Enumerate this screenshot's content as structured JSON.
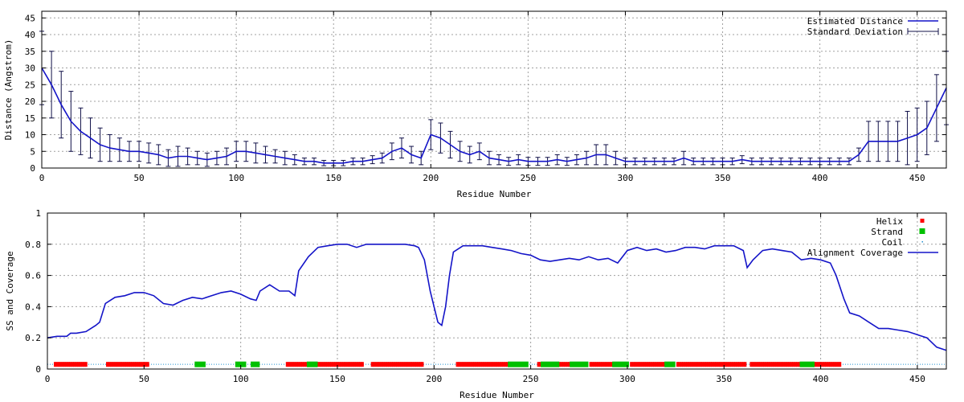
{
  "chart_data": [
    {
      "type": "line",
      "xlabel": "Residue Number",
      "ylabel": "Distance (Angstrom)",
      "xlim": [
        0,
        465
      ],
      "ylim": [
        0,
        47
      ],
      "xticks": [
        0,
        50,
        100,
        150,
        200,
        250,
        300,
        350,
        400,
        450
      ],
      "yticks": [
        0,
        5,
        10,
        15,
        20,
        25,
        30,
        35,
        40,
        45
      ],
      "grid": true,
      "legend_position": "top-right",
      "legend": [
        "Estimated Distance",
        "Standard Deviation"
      ],
      "colors": {
        "line": "#1414c8",
        "errorbar": "#101048"
      },
      "series": [
        {
          "name": "Estimated Distance",
          "x": [
            0,
            5,
            10,
            15,
            20,
            25,
            30,
            35,
            40,
            45,
            50,
            55,
            60,
            65,
            70,
            75,
            80,
            85,
            90,
            95,
            100,
            105,
            110,
            115,
            120,
            125,
            130,
            135,
            140,
            145,
            150,
            155,
            160,
            165,
            170,
            175,
            180,
            185,
            190,
            195,
            200,
            205,
            210,
            215,
            220,
            225,
            230,
            235,
            240,
            245,
            250,
            255,
            260,
            265,
            270,
            275,
            280,
            285,
            290,
            295,
            300,
            305,
            310,
            315,
            320,
            325,
            330,
            335,
            340,
            345,
            350,
            355,
            360,
            365,
            370,
            375,
            380,
            385,
            390,
            395,
            400,
            405,
            410,
            415,
            420,
            425,
            430,
            435,
            440,
            445,
            450,
            455,
            460,
            465
          ],
          "y": [
            30,
            25,
            19,
            14,
            11,
            9,
            7,
            6,
            5.5,
            5,
            5,
            4.5,
            4,
            3,
            3.5,
            3.5,
            3,
            2.5,
            3,
            3.5,
            5,
            5,
            4.5,
            4,
            3.5,
            3,
            2.5,
            2,
            2,
            1.5,
            1.5,
            1.5,
            2,
            2,
            2.5,
            3,
            5,
            6,
            4,
            3,
            10,
            9,
            7,
            5,
            4,
            5,
            3,
            2.5,
            2,
            2.5,
            2,
            2,
            2,
            2.5,
            2,
            2.5,
            3,
            4,
            4,
            3,
            2,
            2,
            2,
            2,
            2,
            2,
            3,
            2,
            2,
            2,
            2,
            2,
            2.5,
            2,
            2,
            2,
            2,
            2,
            2,
            2,
            2,
            2,
            2,
            2,
            4,
            8,
            8,
            8,
            8,
            9,
            10,
            12,
            18,
            24
          ]
        },
        {
          "name": "Standard Deviation",
          "x": [
            0,
            5,
            10,
            15,
            20,
            25,
            30,
            35,
            40,
            45,
            50,
            55,
            60,
            65,
            70,
            75,
            80,
            85,
            90,
            95,
            100,
            105,
            110,
            115,
            120,
            125,
            130,
            135,
            140,
            145,
            150,
            155,
            160,
            165,
            170,
            175,
            180,
            185,
            190,
            195,
            200,
            205,
            210,
            215,
            220,
            225,
            230,
            235,
            240,
            245,
            250,
            255,
            260,
            265,
            270,
            275,
            280,
            285,
            290,
            295,
            300,
            305,
            310,
            315,
            320,
            325,
            330,
            335,
            340,
            345,
            350,
            355,
            360,
            365,
            370,
            375,
            380,
            385,
            390,
            395,
            400,
            405,
            410,
            415,
            420,
            425,
            430,
            435,
            440,
            445,
            450,
            455,
            460,
            465
          ],
          "values": [
            11,
            10,
            10,
            9,
            7,
            6,
            5,
            4,
            3.5,
            3,
            3,
            3,
            3,
            2.5,
            3,
            2.5,
            2,
            2,
            2,
            2.5,
            3,
            3,
            3,
            2.5,
            2,
            2,
            1.5,
            1,
            1,
            0.8,
            0.8,
            0.8,
            1,
            1,
            1.2,
            1.5,
            2.5,
            3,
            2.5,
            2,
            4.5,
            4.5,
            4,
            3,
            2.5,
            2.5,
            2,
            1.5,
            1.2,
            1.5,
            1.2,
            1.2,
            1.2,
            1.5,
            1.2,
            1.5,
            2,
            3,
            3,
            2,
            1,
            1,
            1,
            1,
            1,
            1,
            2,
            1,
            1,
            1,
            1,
            1,
            1.2,
            1,
            1,
            1,
            1,
            1,
            1,
            1,
            1,
            1,
            1,
            1,
            2,
            6,
            6,
            6,
            6,
            8,
            8,
            8,
            10,
            11
          ]
        }
      ]
    },
    {
      "type": "line",
      "xlabel": "Residue Number",
      "ylabel": "SS and Coverage",
      "xlim": [
        0,
        465
      ],
      "ylim": [
        0,
        1
      ],
      "xticks": [
        0,
        50,
        100,
        150,
        200,
        250,
        300,
        350,
        400,
        450
      ],
      "yticks": [
        0,
        0.2,
        0.4,
        0.6,
        0.8,
        1
      ],
      "ytick_labels": [
        "0",
        "0.2",
        "0.4",
        "0.6",
        "0.8",
        "1"
      ],
      "grid": true,
      "legend_position": "top-right",
      "legend": [
        "Helix",
        "Strand",
        "Coil",
        "Alignment Coverage"
      ],
      "colors": {
        "helix": "#ff0000",
        "strand": "#00c000",
        "coil": "#2090d0",
        "coverage": "#1414c8"
      },
      "series": [
        {
          "name": "Alignment Coverage",
          "x": [
            0,
            5,
            10,
            12,
            15,
            20,
            25,
            27,
            30,
            35,
            40,
            45,
            50,
            55,
            60,
            65,
            70,
            75,
            80,
            85,
            90,
            95,
            100,
            105,
            108,
            110,
            115,
            120,
            125,
            128,
            130,
            135,
            140,
            145,
            150,
            155,
            160,
            165,
            170,
            175,
            180,
            185,
            190,
            192,
            195,
            198,
            200,
            202,
            204,
            206,
            208,
            210,
            215,
            220,
            225,
            230,
            235,
            240,
            245,
            250,
            255,
            260,
            265,
            270,
            275,
            280,
            285,
            290,
            295,
            300,
            305,
            310,
            315,
            320,
            325,
            330,
            335,
            340,
            345,
            350,
            355,
            360,
            362,
            365,
            370,
            375,
            380,
            385,
            390,
            395,
            400,
            405,
            408,
            412,
            415,
            420,
            425,
            430,
            435,
            440,
            445,
            450,
            455,
            460,
            465
          ],
          "y": [
            0.2,
            0.21,
            0.21,
            0.23,
            0.23,
            0.24,
            0.28,
            0.3,
            0.42,
            0.46,
            0.47,
            0.49,
            0.49,
            0.47,
            0.42,
            0.41,
            0.44,
            0.46,
            0.45,
            0.47,
            0.49,
            0.5,
            0.48,
            0.45,
            0.44,
            0.5,
            0.54,
            0.5,
            0.5,
            0.47,
            0.63,
            0.72,
            0.78,
            0.79,
            0.8,
            0.8,
            0.78,
            0.8,
            0.8,
            0.8,
            0.8,
            0.8,
            0.79,
            0.78,
            0.7,
            0.5,
            0.4,
            0.3,
            0.28,
            0.4,
            0.6,
            0.75,
            0.79,
            0.79,
            0.79,
            0.78,
            0.77,
            0.76,
            0.74,
            0.73,
            0.7,
            0.69,
            0.7,
            0.71,
            0.7,
            0.72,
            0.7,
            0.71,
            0.68,
            0.76,
            0.78,
            0.76,
            0.77,
            0.75,
            0.76,
            0.78,
            0.78,
            0.77,
            0.79,
            0.79,
            0.79,
            0.76,
            0.65,
            0.7,
            0.76,
            0.77,
            0.76,
            0.75,
            0.7,
            0.71,
            0.7,
            0.68,
            0.6,
            0.45,
            0.36,
            0.34,
            0.3,
            0.26,
            0.26,
            0.25,
            0.24,
            0.22,
            0.2,
            0.14,
            0.12
          ]
        },
        {
          "name": "Helix",
          "y": 0.03,
          "segments": [
            [
              4,
              20
            ],
            [
              31,
              52
            ],
            [
              124,
              134
            ],
            [
              138,
              163
            ],
            [
              168,
              194
            ],
            [
              212,
              239
            ],
            [
              254,
              256
            ],
            [
              265,
              271
            ],
            [
              281,
              293
            ],
            [
              302,
              320
            ],
            [
              326,
              361
            ],
            [
              364,
              391
            ],
            [
              396,
              410
            ]
          ]
        },
        {
          "name": "Strand",
          "y": 0.03,
          "segments": [
            [
              77,
              81
            ],
            [
              98,
              102
            ],
            [
              106,
              109
            ],
            [
              135,
              139
            ],
            [
              239,
              248
            ],
            [
              256,
              264
            ],
            [
              271,
              279
            ],
            [
              293,
              300
            ],
            [
              320,
              324
            ],
            [
              390,
              396
            ]
          ]
        },
        {
          "name": "Coil",
          "y": 0.03,
          "segments": [
            [
              0,
              465
            ]
          ]
        }
      ]
    }
  ]
}
